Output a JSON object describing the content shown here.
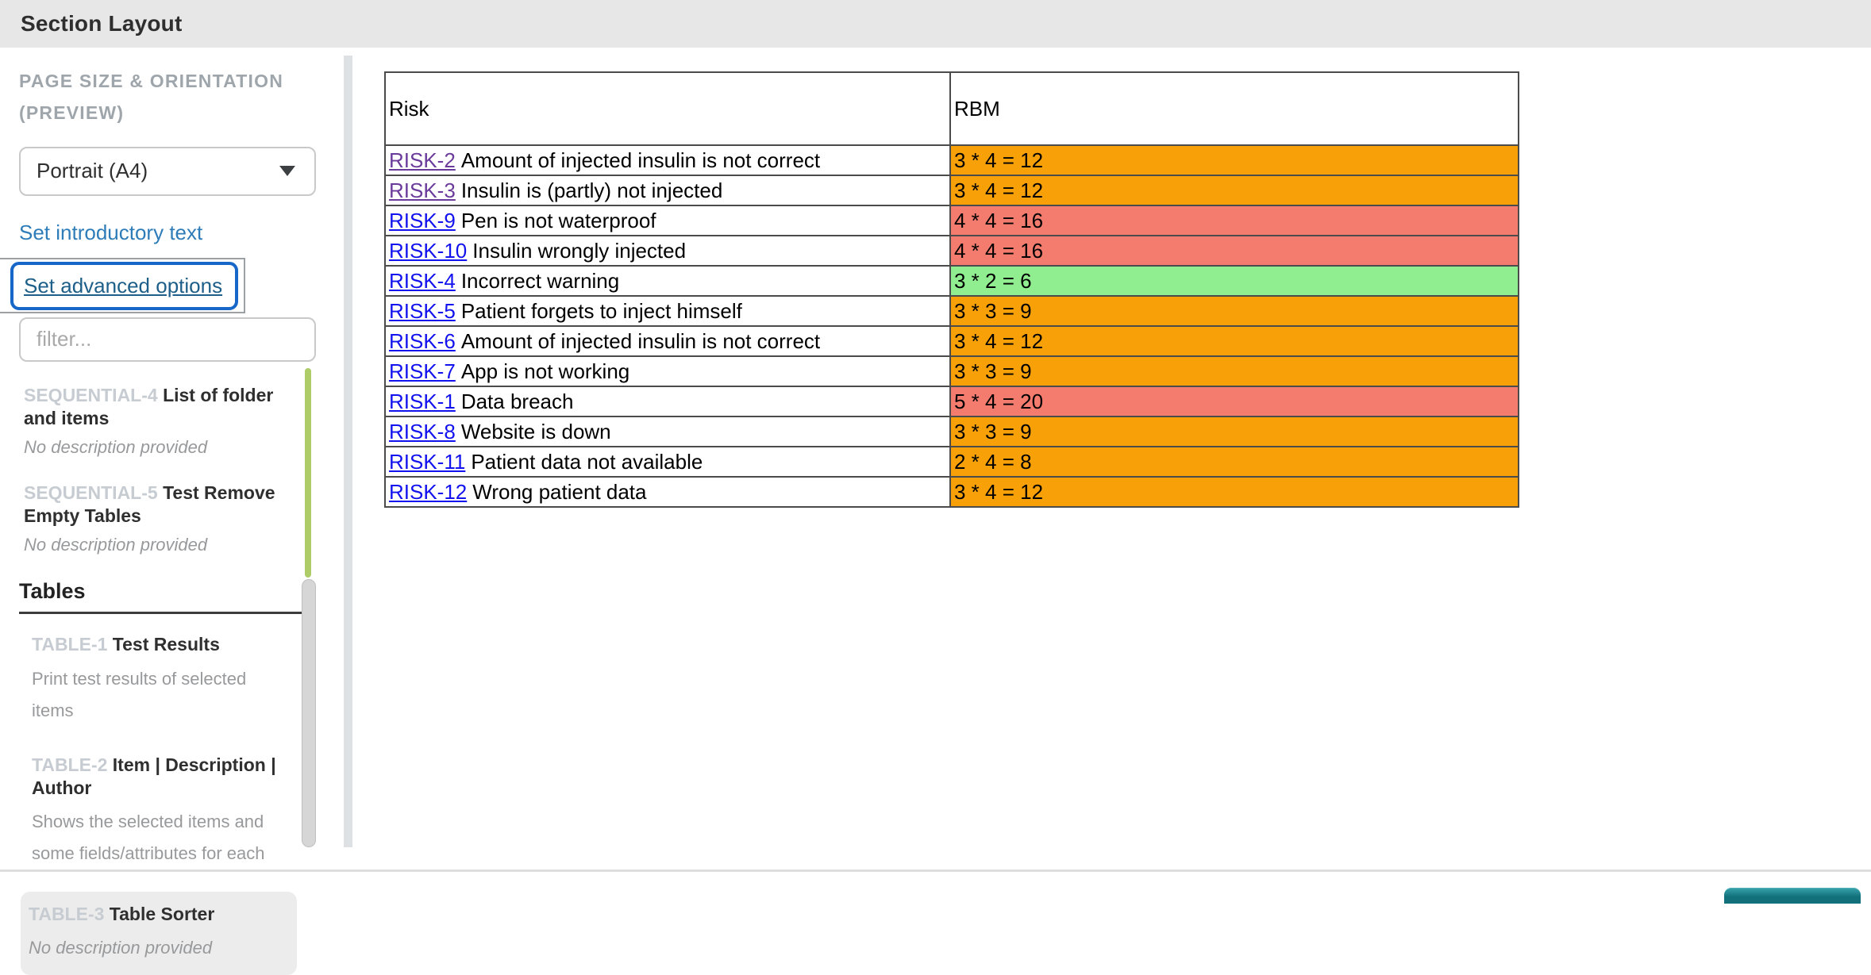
{
  "header": {
    "title": "Section Layout"
  },
  "sidebar": {
    "heading_line1": "PAGE SIZE & ORIENTATION",
    "heading_line2": "(PREVIEW)",
    "orientation_select": {
      "value": "Portrait (A4)"
    },
    "intro_link_label": "Set introductory text",
    "advanced_link_label": "Set advanced options",
    "filter_placeholder": "filter...",
    "sections": [
      {
        "id": "SEQUENTIAL-4",
        "title": "List of folder and items",
        "desc": "No description provided",
        "desc_italic": true
      },
      {
        "id": "SEQUENTIAL-5",
        "title": "Test Remove Empty Tables",
        "desc": "No description provided",
        "desc_italic": true
      }
    ],
    "tables_heading": "Tables",
    "tables": [
      {
        "id": "TABLE-1",
        "title": "Test Results",
        "desc": "Print test results of selected items",
        "desc_italic": false,
        "highlighted": false
      },
      {
        "id": "TABLE-2",
        "title": "Item | Description | Author",
        "desc": "Shows the selected items and some fields/attributes for each",
        "desc_italic": false,
        "highlighted": false
      },
      {
        "id": "TABLE-3",
        "title": "Table Sorter",
        "desc": "No description provided",
        "desc_italic": true,
        "highlighted": true
      }
    ]
  },
  "preview_table": {
    "columns": [
      "Risk",
      "RBM"
    ],
    "rows": [
      {
        "id": "RISK-2",
        "visited": true,
        "text": "Amount of injected insulin is not correct",
        "rbm": "3 * 4 = 12",
        "color": "orange"
      },
      {
        "id": "RISK-3",
        "visited": true,
        "text": "Insulin is (partly) not injected",
        "rbm": "3 * 4 = 12",
        "color": "orange"
      },
      {
        "id": "RISK-9",
        "visited": false,
        "text": "Pen is not waterproof",
        "rbm": "4 * 4 = 16",
        "color": "salmon"
      },
      {
        "id": "RISK-10",
        "visited": false,
        "text": "Insulin wrongly injected",
        "rbm": "4 * 4 = 16",
        "color": "salmon"
      },
      {
        "id": "RISK-4",
        "visited": false,
        "text": "Incorrect warning",
        "rbm": "3 * 2 = 6",
        "color": "green"
      },
      {
        "id": "RISK-5",
        "visited": false,
        "text": "Patient forgets to inject himself",
        "rbm": "3 * 3 = 9",
        "color": "orange"
      },
      {
        "id": "RISK-6",
        "visited": false,
        "text": "Amount of injected insulin is not correct",
        "rbm": "3 * 4 = 12",
        "color": "orange"
      },
      {
        "id": "RISK-7",
        "visited": false,
        "text": "App is not working",
        "rbm": "3 * 3 = 9",
        "color": "orange"
      },
      {
        "id": "RISK-1",
        "visited": false,
        "text": "Data breach",
        "rbm": "5 * 4 = 20",
        "color": "salmon"
      },
      {
        "id": "RISK-8",
        "visited": false,
        "text": "Website is down",
        "rbm": "3 * 3 = 9",
        "color": "orange"
      },
      {
        "id": "RISK-11",
        "visited": false,
        "text": "Patient data not available",
        "rbm": "2 * 4 = 8",
        "color": "orange"
      },
      {
        "id": "RISK-12",
        "visited": false,
        "text": "Wrong patient data",
        "rbm": "3 * 4 = 12",
        "color": "orange"
      }
    ]
  },
  "colors": {
    "orange": "#F7A008",
    "salmon": "#F47C6E",
    "green": "#90EE90",
    "focus_ring": "#1667C8",
    "link_blue": "#1212EE",
    "link_visited": "#6B3B9B",
    "scroll_indicator_green": "#AECD68",
    "teal_button": "#11707A"
  }
}
